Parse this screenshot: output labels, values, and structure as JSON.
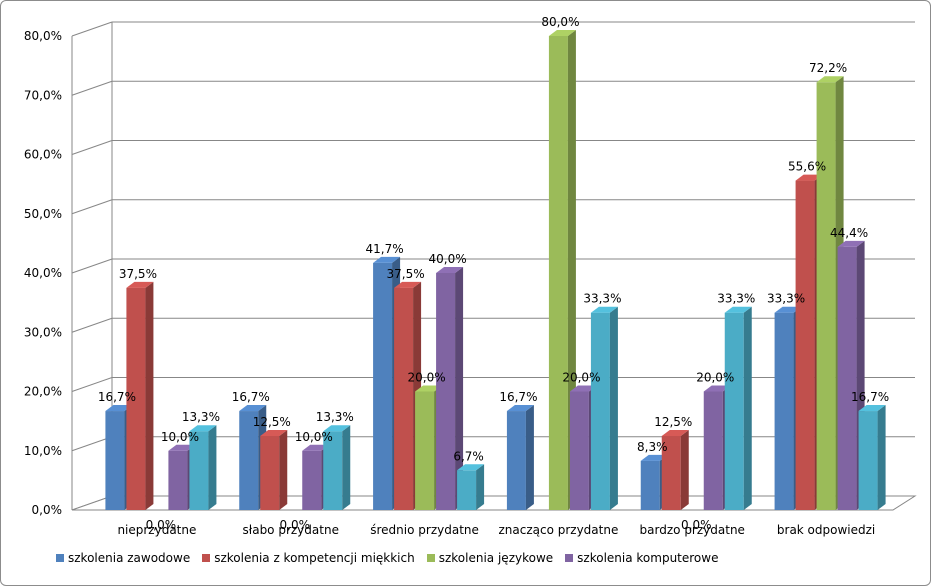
{
  "chart_data": {
    "type": "bar",
    "title": "",
    "xlabel": "",
    "ylabel": "",
    "ylim": [
      0,
      80
    ],
    "y_ticks": [
      "0,0%",
      "10,0%",
      "20,0%",
      "30,0%",
      "40,0%",
      "50,0%",
      "60,0%",
      "70,0%",
      "80,0%"
    ],
    "categories": [
      "nieprzydatne",
      "słabo przydatne",
      "średnio przydatne",
      "znacząco przydatne",
      "bardzo przydatne",
      "brak odpowiedzi"
    ],
    "series": [
      {
        "name": "szkolenia zawodowe",
        "color": "#4f81bd",
        "values": [
          16.7,
          16.7,
          41.7,
          16.7,
          8.3,
          33.3
        ],
        "labels": [
          "16,7%",
          "16,7%",
          "41,7%",
          "16,7%",
          "8,3%",
          "33,3%"
        ]
      },
      {
        "name": "szkolenia z kompetencji miękkich",
        "color": "#c0504d",
        "values": [
          37.5,
          12.5,
          37.5,
          0,
          12.5,
          55.6
        ],
        "labels": [
          "37,5%",
          "12,5%",
          "37,5%",
          "",
          "12,5%",
          "55,6%"
        ]
      },
      {
        "name": "szkolenia językowe",
        "color": "#9bbb59",
        "values": [
          0,
          0,
          20.0,
          80.0,
          0,
          72.2
        ],
        "labels": [
          "0,0%",
          "0,0%",
          "20,0%",
          "80,0%",
          "0,0%",
          "72,2%"
        ]
      },
      {
        "name": "szkolenia komputerowe",
        "color": "#8064a2",
        "values": [
          10.0,
          10.0,
          40.0,
          20.0,
          20.0,
          44.4
        ],
        "labels": [
          "10,0%",
          "10,0%",
          "40,0%",
          "20,0%",
          "20,0%",
          "44,4%"
        ]
      },
      {
        "name": "",
        "color": "#4bacc6",
        "values": [
          13.3,
          13.3,
          6.7,
          33.3,
          33.3,
          16.7
        ],
        "labels": [
          "13,3%",
          "13,3%",
          "6,7%",
          "33,3%",
          "33,3%",
          "16,7%"
        ]
      }
    ],
    "annotations": [
      "0,0%"
    ],
    "legend_position": "bottom",
    "grid": true
  }
}
